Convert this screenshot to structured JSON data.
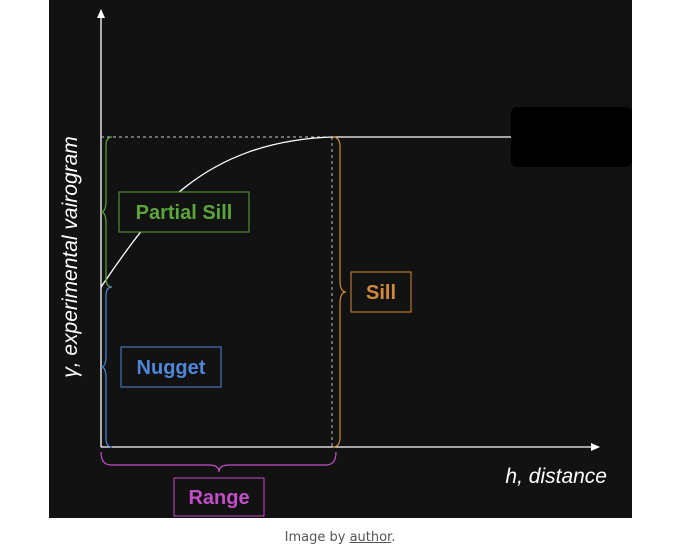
{
  "diagram": {
    "y_axis_label": "γ, experimental vairogram",
    "x_axis_label": "h, distance",
    "labels": {
      "partial_sill": "Partial Sill",
      "nugget": "Nugget",
      "sill": "Sill",
      "range": "Range"
    },
    "colors": {
      "background": "#121212",
      "axes": "#ffffff",
      "partial_sill": "#5aa63c",
      "nugget": "#4f86d8",
      "sill": "#d28a3c",
      "range": "#c24fc8"
    }
  },
  "caption": {
    "prefix": "Image by ",
    "link_text": "author",
    "suffix": "."
  }
}
